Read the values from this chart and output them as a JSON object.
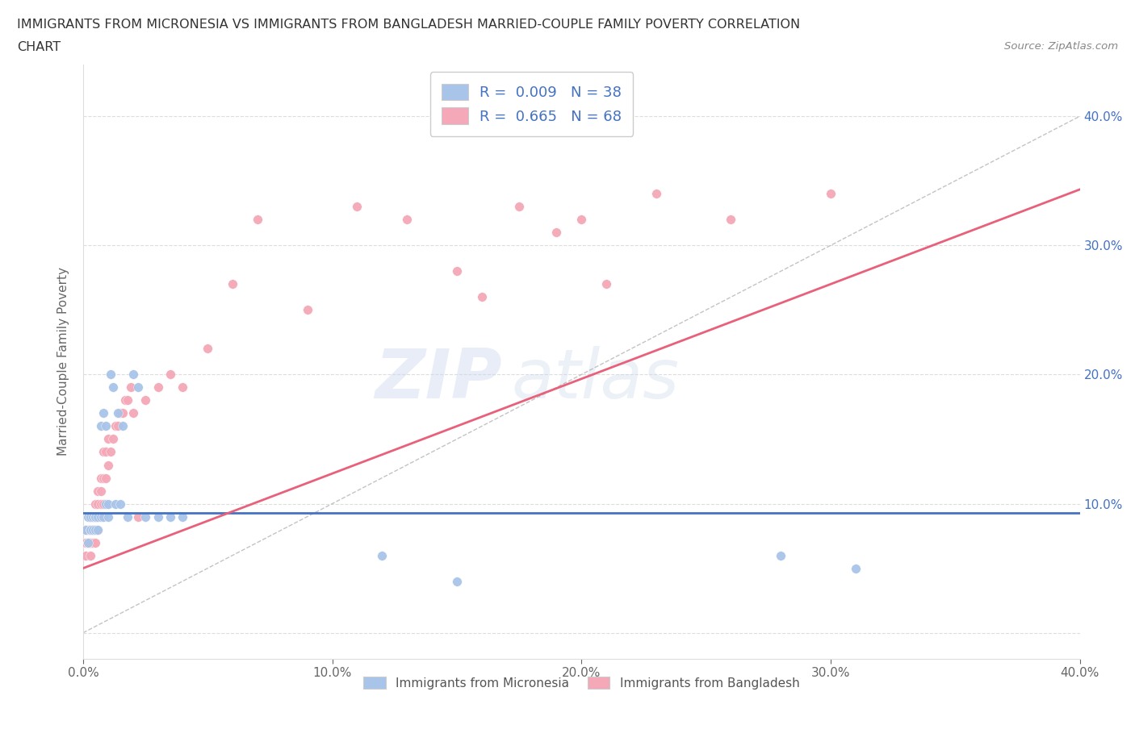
{
  "title_line1": "IMMIGRANTS FROM MICRONESIA VS IMMIGRANTS FROM BANGLADESH MARRIED-COUPLE FAMILY POVERTY CORRELATION",
  "title_line2": "CHART",
  "source": "Source: ZipAtlas.com",
  "ylabel": "Married-Couple Family Poverty",
  "xlim": [
    0.0,
    0.4
  ],
  "ylim": [
    -0.02,
    0.44
  ],
  "yticks": [
    0.0,
    0.1,
    0.2,
    0.3,
    0.4
  ],
  "ytick_labels": [
    "",
    "10.0%",
    "20.0%",
    "30.0%",
    "40.0%"
  ],
  "xticks": [
    0.0,
    0.1,
    0.2,
    0.3,
    0.4
  ],
  "xtick_labels": [
    "0.0%",
    "10.0%",
    "20.0%",
    "30.0%",
    "40.0%"
  ],
  "watermark_zip": "ZIP",
  "watermark_atlas": "atlas",
  "legend_label1": "R =  0.009   N = 38",
  "legend_label2": "R =  0.665   N = 68",
  "color_micronesia_fill": "#a8c4e8",
  "color_bangladesh_fill": "#f4a8b8",
  "color_blue_line": "#4472C4",
  "color_pink_line": "#E8607A",
  "color_text_blue": "#4472C4",
  "color_gray_dashed": "#aaaaaa",
  "micronesia_x": [
    0.001,
    0.002,
    0.002,
    0.003,
    0.003,
    0.003,
    0.004,
    0.004,
    0.005,
    0.005,
    0.005,
    0.006,
    0.006,
    0.007,
    0.007,
    0.008,
    0.008,
    0.009,
    0.009,
    0.01,
    0.01,
    0.011,
    0.012,
    0.013,
    0.014,
    0.015,
    0.016,
    0.018,
    0.02,
    0.022,
    0.025,
    0.03,
    0.035,
    0.04,
    0.12,
    0.15,
    0.28,
    0.31
  ],
  "micronesia_y": [
    0.08,
    0.09,
    0.07,
    0.08,
    0.09,
    0.08,
    0.09,
    0.08,
    0.09,
    0.08,
    0.09,
    0.08,
    0.09,
    0.09,
    0.16,
    0.17,
    0.09,
    0.1,
    0.16,
    0.09,
    0.1,
    0.2,
    0.19,
    0.1,
    0.17,
    0.1,
    0.16,
    0.09,
    0.2,
    0.19,
    0.09,
    0.09,
    0.09,
    0.09,
    0.06,
    0.04,
    0.06,
    0.05
  ],
  "bangladesh_x": [
    0.001,
    0.001,
    0.001,
    0.001,
    0.002,
    0.002,
    0.002,
    0.002,
    0.003,
    0.003,
    0.003,
    0.003,
    0.003,
    0.003,
    0.004,
    0.004,
    0.004,
    0.004,
    0.004,
    0.005,
    0.005,
    0.005,
    0.005,
    0.005,
    0.006,
    0.006,
    0.006,
    0.006,
    0.007,
    0.007,
    0.007,
    0.008,
    0.008,
    0.008,
    0.009,
    0.009,
    0.01,
    0.01,
    0.011,
    0.012,
    0.013,
    0.014,
    0.015,
    0.016,
    0.017,
    0.018,
    0.019,
    0.02,
    0.022,
    0.025,
    0.03,
    0.035,
    0.04,
    0.05,
    0.06,
    0.07,
    0.09,
    0.11,
    0.13,
    0.15,
    0.16,
    0.175,
    0.19,
    0.2,
    0.21,
    0.23,
    0.26,
    0.3
  ],
  "bangladesh_y": [
    0.07,
    0.08,
    0.07,
    0.06,
    0.07,
    0.08,
    0.07,
    0.08,
    0.06,
    0.07,
    0.07,
    0.08,
    0.09,
    0.07,
    0.07,
    0.08,
    0.08,
    0.09,
    0.08,
    0.07,
    0.08,
    0.09,
    0.09,
    0.1,
    0.08,
    0.09,
    0.1,
    0.11,
    0.1,
    0.11,
    0.12,
    0.1,
    0.12,
    0.14,
    0.12,
    0.14,
    0.13,
    0.15,
    0.14,
    0.15,
    0.16,
    0.16,
    0.17,
    0.17,
    0.18,
    0.18,
    0.19,
    0.17,
    0.09,
    0.18,
    0.19,
    0.2,
    0.19,
    0.22,
    0.27,
    0.32,
    0.25,
    0.33,
    0.32,
    0.28,
    0.26,
    0.33,
    0.31,
    0.32,
    0.27,
    0.34,
    0.32,
    0.34
  ]
}
